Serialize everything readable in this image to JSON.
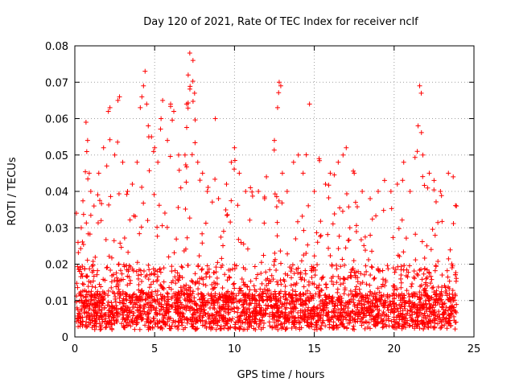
{
  "chart_data": {
    "type": "scatter",
    "title": "Day 120 of 2021, Rate Of TEC Index for receiver nclf",
    "xlabel": "GPS time / hours",
    "ylabel": "ROTI / TECUs",
    "xlim": [
      0,
      25
    ],
    "ylim": [
      0,
      0.08
    ],
    "x_ticks": [
      0,
      5,
      10,
      15,
      20,
      25
    ],
    "x_tick_labels": [
      "0",
      "5",
      "10",
      "15",
      "20",
      "25"
    ],
    "y_ticks": [
      0,
      0.01,
      0.02,
      0.03,
      0.04,
      0.05,
      0.06,
      0.07,
      0.08
    ],
    "y_tick_labels": [
      "0",
      "0.01",
      "0.02",
      "0.03",
      "0.04",
      "0.05",
      "0.06",
      "0.07",
      "0.08"
    ],
    "grid": true,
    "marker": "plus",
    "color": "#ff0000",
    "series": [
      {
        "name": "ROTI",
        "points": [
          [
            0.1,
            0.034
          ],
          [
            0.2,
            0.026
          ],
          [
            0.3,
            0.018
          ],
          [
            0.4,
            0.03
          ],
          [
            0.7,
            0.059
          ],
          [
            0.8,
            0.054
          ],
          [
            0.9,
            0.045
          ],
          [
            1.0,
            0.04
          ],
          [
            1.2,
            0.036
          ],
          [
            1.5,
            0.045
          ],
          [
            1.8,
            0.052
          ],
          [
            2.0,
            0.047
          ],
          [
            2.1,
            0.062
          ],
          [
            2.2,
            0.063
          ],
          [
            2.5,
            0.05
          ],
          [
            2.7,
            0.065
          ],
          [
            2.8,
            0.066
          ],
          [
            3.0,
            0.048
          ],
          [
            3.3,
            0.04
          ],
          [
            3.6,
            0.042
          ],
          [
            3.9,
            0.048
          ],
          [
            4.1,
            0.063
          ],
          [
            4.2,
            0.066
          ],
          [
            4.3,
            0.069
          ],
          [
            4.4,
            0.073
          ],
          [
            4.5,
            0.064
          ],
          [
            4.6,
            0.058
          ],
          [
            4.8,
            0.055
          ],
          [
            5.0,
            0.052
          ],
          [
            5.2,
            0.048
          ],
          [
            5.4,
            0.06
          ],
          [
            5.5,
            0.065
          ],
          [
            5.8,
            0.054
          ],
          [
            6.0,
            0.064
          ],
          [
            6.2,
            0.062
          ],
          [
            6.5,
            0.05
          ],
          [
            6.9,
            0.05
          ],
          [
            7.0,
            0.064
          ],
          [
            7.1,
            0.072
          ],
          [
            7.2,
            0.078
          ],
          [
            7.4,
            0.076
          ],
          [
            7.5,
            0.067
          ],
          [
            7.7,
            0.048
          ],
          [
            8.0,
            0.045
          ],
          [
            8.3,
            0.04
          ],
          [
            8.8,
            0.06
          ],
          [
            9.0,
            0.038
          ],
          [
            9.5,
            0.042
          ],
          [
            9.8,
            0.048
          ],
          [
            10.0,
            0.052
          ],
          [
            10.3,
            0.045
          ],
          [
            10.7,
            0.04
          ],
          [
            11.0,
            0.041
          ],
          [
            11.5,
            0.04
          ],
          [
            12.0,
            0.044
          ],
          [
            12.5,
            0.054
          ],
          [
            12.7,
            0.063
          ],
          [
            12.8,
            0.07
          ],
          [
            12.9,
            0.069
          ],
          [
            13.0,
            0.045
          ],
          [
            13.3,
            0.04
          ],
          [
            13.7,
            0.048
          ],
          [
            14.0,
            0.05
          ],
          [
            14.3,
            0.045
          ],
          [
            14.7,
            0.064
          ],
          [
            15.0,
            0.04
          ],
          [
            15.3,
            0.049
          ],
          [
            15.7,
            0.042
          ],
          [
            16.0,
            0.045
          ],
          [
            16.5,
            0.048
          ],
          [
            16.8,
            0.05
          ],
          [
            17.0,
            0.052
          ],
          [
            17.5,
            0.045
          ],
          [
            18.0,
            0.04
          ],
          [
            18.5,
            0.038
          ],
          [
            19.0,
            0.04
          ],
          [
            19.4,
            0.043
          ],
          [
            19.8,
            0.04
          ],
          [
            20.2,
            0.042
          ],
          [
            20.6,
            0.048
          ],
          [
            21.0,
            0.04
          ],
          [
            21.5,
            0.058
          ],
          [
            21.6,
            0.069
          ],
          [
            21.7,
            0.067
          ],
          [
            21.8,
            0.05
          ],
          [
            22.2,
            0.045
          ],
          [
            22.5,
            0.043
          ],
          [
            22.9,
            0.04
          ],
          [
            23.4,
            0.045
          ],
          [
            23.7,
            0.044
          ],
          [
            23.9,
            0.036
          ]
        ]
      }
    ]
  }
}
